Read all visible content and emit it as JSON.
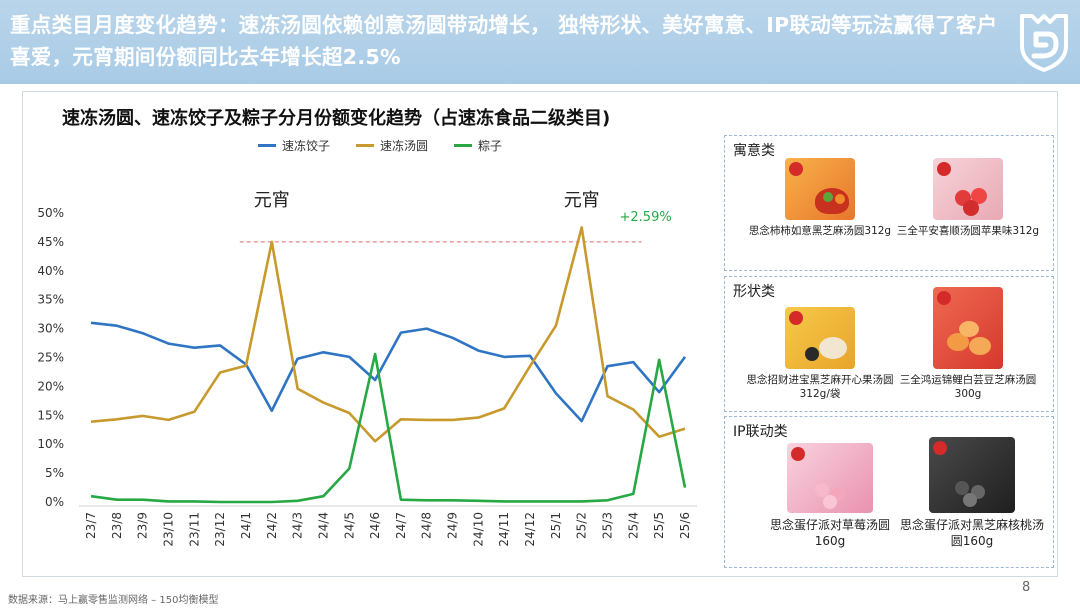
{
  "header": {
    "headline": "重点类目月度变化趋势：速冻汤圆依赖创意汤圆带动增长， 独特形状、美好寓意、IP联动等玩法赢得了客户喜爱，元宵期间份额同比去年增长超2.5%"
  },
  "colors": {
    "banner": "#b0cfe7",
    "dumplings": "#2f75c3",
    "tangyuan": "#c89a2e",
    "zongzi": "#27a844",
    "reference": "#e26a6a",
    "delta_text": "#27a844"
  },
  "icons": {
    "logo": "shield-logo-icon"
  },
  "chart_data": {
    "type": "line",
    "title": "速冻汤圆、速冻饺子及粽子分月份额变化趋势（占速冻食品二级类目)",
    "categories": [
      "23/7",
      "23/8",
      "23/9",
      "23/10",
      "23/11",
      "23/12",
      "24/1",
      "24/2",
      "24/3",
      "24/4",
      "24/5",
      "24/6",
      "24/7",
      "24/8",
      "24/9",
      "24/10",
      "24/11",
      "24/12",
      "25/1",
      "25/2",
      "25/3",
      "25/4",
      "25/5",
      "25/6"
    ],
    "series": [
      {
        "name": "速冻饺子",
        "color": "#2f75c3",
        "values": [
          31,
          30.5,
          29.2,
          27.4,
          26.7,
          27.1,
          23.8,
          15.8,
          24.8,
          25.9,
          25.1,
          21.1,
          29.3,
          30.0,
          28.4,
          26.2,
          25.1,
          25.3,
          18.8,
          14.0,
          23.5,
          24.2,
          19.0,
          25.1
        ]
      },
      {
        "name": "速冻汤圆",
        "color": "#c89a2e",
        "values": [
          13.9,
          14.3,
          14.9,
          14.2,
          15.6,
          22.4,
          23.6,
          45.0,
          19.6,
          17.2,
          15.4,
          10.5,
          14.3,
          14.2,
          14.2,
          14.6,
          16.2,
          23.5,
          30.5,
          47.5,
          18.3,
          16.0,
          11.3,
          12.7
        ]
      },
      {
        "name": "粽子",
        "color": "#27a844",
        "values": [
          1.0,
          0.4,
          0.4,
          0.1,
          0.1,
          0.0,
          0.0,
          0.0,
          0.2,
          1.0,
          5.8,
          25.6,
          0.4,
          0.3,
          0.3,
          0.2,
          0.1,
          0.1,
          0.1,
          0.1,
          0.3,
          1.4,
          24.6,
          2.5
        ]
      }
    ],
    "y_ticks": [
      "0%",
      "5%",
      "10%",
      "15%",
      "20%",
      "25%",
      "30%",
      "35%",
      "40%",
      "45%",
      "50%"
    ],
    "ylim": [
      0,
      50
    ],
    "reference_line": {
      "value": 45,
      "from": "24/2",
      "to": "25/3"
    },
    "annotations": [
      {
        "text": "元宵",
        "at": "24/2"
      },
      {
        "text": "元宵",
        "at": "25/2"
      },
      {
        "text": "+2.59%",
        "at": "25/3"
      }
    ],
    "legend_position": "top-center",
    "grid": false
  },
  "panels": [
    {
      "title": "寓意类",
      "products": [
        {
          "name": "思念柿柿如意黑芝麻汤圆312g",
          "image": "product-persimmon-tangyuan-image"
        },
        {
          "name": "三全平安喜顺汤圆苹果味312g",
          "image": "product-apple-tangyuan-image"
        }
      ]
    },
    {
      "title": "形状类",
      "products": [
        {
          "name": "思念招财进宝黑芝麻开心果汤圆312g/袋",
          "image": "product-ingot-tangyuan-image"
        },
        {
          "name": "三全鸿运锦鲤白芸豆芝麻汤圆300g",
          "image": "product-koi-tangyuan-image"
        }
      ]
    },
    {
      "title": "IP联动类",
      "products": [
        {
          "name": "思念蛋仔派对草莓汤圆160g",
          "image": "product-eggy-strawberry-image"
        },
        {
          "name": "思念蛋仔派对黑芝麻核桃汤圆160g",
          "image": "product-eggy-sesame-image"
        }
      ]
    }
  ],
  "footer": {
    "source": "数据来源：马上赢零售监测网络 – 150均衡模型",
    "page_number": "8"
  }
}
